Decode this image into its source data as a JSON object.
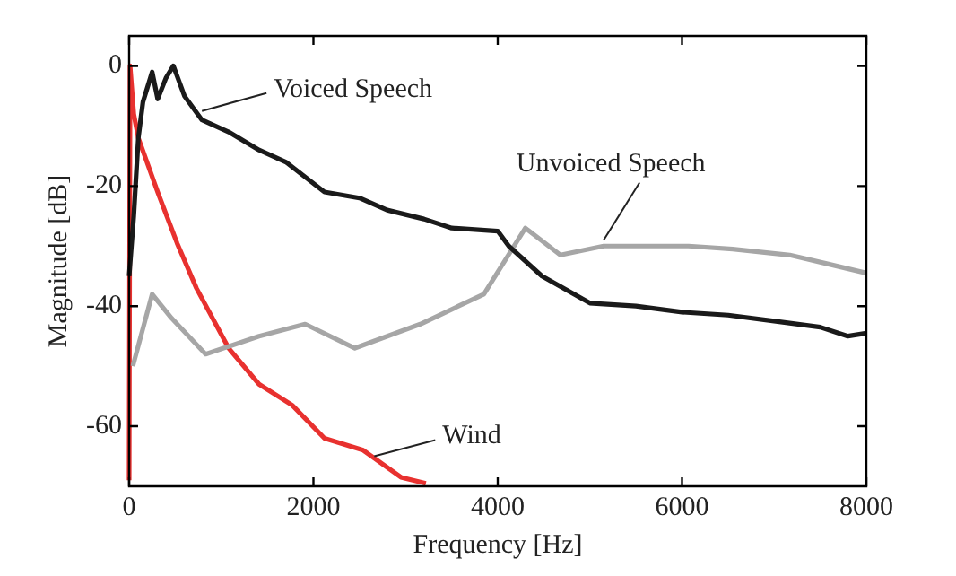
{
  "chart_data": {
    "type": "line",
    "xlabel": "Frequency [Hz]",
    "ylabel": "Magnitude [dB]",
    "xlim": [
      0,
      8000
    ],
    "ylim": [
      -70,
      5
    ],
    "xticks": [
      0,
      2000,
      4000,
      6000,
      8000
    ],
    "yticks": [
      -60,
      -40,
      -20,
      0
    ],
    "grid": false,
    "legend": false,
    "marker": "none",
    "line_style": "solid",
    "series": [
      {
        "color": "#1a1a1a",
        "x": [
          0,
          50,
          100,
          150,
          250,
          310,
          400,
          480,
          600,
          790,
          1080,
          1410,
          1700,
          2120,
          2500,
          2800,
          3200,
          3500,
          4000,
          4120,
          4300,
          4480,
          5000,
          5500,
          6000,
          6500,
          7000,
          7500,
          7800,
          8000
        ],
        "values": [
          -35,
          -25,
          -12,
          -6,
          -1,
          -5.5,
          -2,
          0,
          -5,
          -9,
          -11,
          -14,
          -16,
          -21,
          -22,
          -24,
          -25.5,
          -27,
          -27.5,
          -30,
          -32.5,
          -35,
          -39.5,
          -40,
          -41,
          -41.5,
          -42.5,
          -43.5,
          -45,
          -44.5
        ]
      },
      {
        "color": "#a6a6a6",
        "x": [
          40,
          250,
          460,
          830,
          1410,
          1910,
          2450,
          3160,
          3850,
          4300,
          4680,
          5150,
          6070,
          6550,
          7170,
          7590,
          8000
        ],
        "values": [
          -50,
          -38,
          -42,
          -48,
          -45,
          -43,
          -47,
          -43,
          -38,
          -27,
          -31.5,
          -30,
          -30,
          -30.5,
          -31.5,
          -33,
          -34.5
        ]
      },
      {
        "color": "#e8312f",
        "x": [
          0,
          10,
          50,
          100,
          310,
          520,
          730,
          1080,
          1410,
          1770,
          2120,
          2540,
          2950,
          3220
        ],
        "values": [
          -69,
          0,
          -8,
          -12,
          -21,
          -29.5,
          -37,
          -47,
          -53,
          -56.5,
          -62,
          -64,
          -68.5,
          -69.5
        ]
      }
    ],
    "annotations": [
      {
        "text": "Voiced Speech",
        "x": 790,
        "y": -7.5
      },
      {
        "text": "Unvoiced Speech",
        "x": 5150,
        "y": -29
      },
      {
        "text": "Wind",
        "x": 2660,
        "y": -65
      }
    ]
  }
}
